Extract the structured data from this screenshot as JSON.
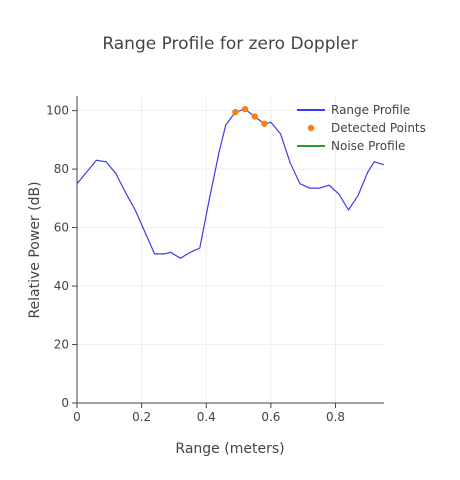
{
  "chart_data": {
    "type": "line",
    "title": "Range Profile for zero Doppler",
    "xlabel": "Range (meters)",
    "ylabel": "Relative Power (dB)",
    "xlim": [
      0,
      0.95
    ],
    "ylim": [
      0,
      105
    ],
    "x_ticks": [
      "0",
      "0.2",
      "0.4",
      "0.6",
      "0.8"
    ],
    "y_ticks": [
      "0",
      "20",
      "40",
      "60",
      "80",
      "100"
    ],
    "grid": true,
    "legend_position": "top-right",
    "series": [
      {
        "name": "Range Profile",
        "kind": "line",
        "color": "#3d3de6",
        "x": [
          0,
          0.03,
          0.06,
          0.09,
          0.12,
          0.15,
          0.18,
          0.21,
          0.24,
          0.27,
          0.29,
          0.32,
          0.35,
          0.38,
          0.41,
          0.44,
          0.46,
          0.49,
          0.52,
          0.55,
          0.58,
          0.6,
          0.63,
          0.66,
          0.69,
          0.72,
          0.75,
          0.78,
          0.81,
          0.84,
          0.87,
          0.9,
          0.92,
          0.95
        ],
        "values": [
          75,
          79,
          83,
          82.5,
          78.5,
          72,
          66,
          58.5,
          51,
          51,
          51.5,
          49.5,
          51.5,
          53,
          70,
          86,
          95,
          99.5,
          100.5,
          98,
          95.5,
          96,
          92,
          82,
          75,
          73.5,
          73.5,
          74.5,
          71.5,
          66,
          71,
          79,
          82.5,
          81.5
        ]
      },
      {
        "name": "Detected Points",
        "kind": "scatter",
        "color": "#ff7f0e",
        "x": [
          0.49,
          0.52,
          0.55,
          0.58
        ],
        "values": [
          99.5,
          100.5,
          98,
          95.5
        ]
      },
      {
        "name": "Noise Profile",
        "kind": "line",
        "color": "#2ca02c",
        "x": [],
        "values": []
      }
    ]
  }
}
